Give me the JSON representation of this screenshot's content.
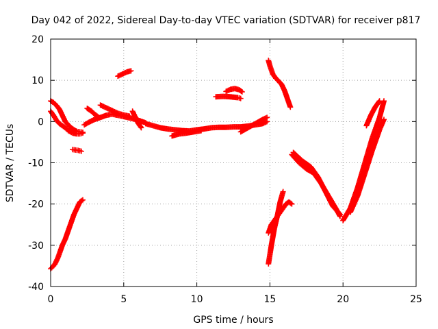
{
  "chart_data": {
    "type": "scatter",
    "title": "Day 042 of 2022, Sidereal Day-to-day VTEC variation (SDTVAR) for receiver p817",
    "xlabel": "GPS time / hours",
    "ylabel": "SDTVAR / TECUs",
    "xlim": [
      0,
      25
    ],
    "ylim": [
      -40,
      20
    ],
    "xticks": [
      0,
      5,
      10,
      15,
      20,
      25
    ],
    "yticks": [
      -40,
      -30,
      -20,
      -10,
      0,
      10,
      20
    ],
    "grid": true,
    "marker": "plus",
    "color": "#ff0000",
    "series": [
      {
        "x": [
          0.0,
          0.15,
          0.3,
          0.5,
          0.8,
          1.0,
          1.2,
          1.4,
          1.6,
          1.8,
          2.0,
          2.2
        ],
        "y": [
          -35.7,
          -35.2,
          -34.5,
          -33.0,
          -30.0,
          -28.5,
          -26.5,
          -24.5,
          -22.5,
          -21.0,
          -19.5,
          -19.0
        ]
      },
      {
        "x": [
          0.0,
          0.2,
          0.4,
          0.6,
          0.8,
          1.0,
          1.2,
          1.4,
          1.6,
          1.8,
          2.0,
          2.2
        ],
        "y": [
          5.0,
          4.6,
          3.9,
          3.0,
          1.5,
          0.0,
          -0.8,
          -1.5,
          -2.0,
          -2.4,
          -2.5,
          -2.6
        ]
      },
      {
        "x": [
          0.0,
          0.2,
          0.4,
          0.6,
          0.8,
          1.0,
          1.2,
          1.5,
          1.8,
          2.0,
          2.2
        ],
        "y": [
          2.5,
          1.5,
          0.3,
          -0.5,
          -1.0,
          -1.5,
          -2.2,
          -2.8,
          -3.0,
          -3.0,
          -2.8
        ]
      },
      {
        "x": [
          1.5,
          1.7,
          1.9,
          2.1
        ],
        "y": [
          -6.8,
          -6.9,
          -7.0,
          -7.2
        ]
      },
      {
        "x": [
          2.5,
          2.8,
          3.0,
          3.3
        ],
        "y": [
          3.2,
          2.5,
          1.8,
          1.0
        ]
      },
      {
        "x": [
          2.3,
          2.6,
          3.0,
          3.4,
          3.8,
          4.2,
          4.6,
          5.0,
          5.5,
          6.0,
          6.5
        ],
        "y": [
          -0.8,
          -0.2,
          0.5,
          1.0,
          1.5,
          1.8,
          1.5,
          1.2,
          0.8,
          0.3,
          -0.3
        ]
      },
      {
        "x": [
          3.4,
          3.7,
          4.0,
          4.3,
          4.6,
          5.0,
          5.4
        ],
        "y": [
          4.0,
          3.5,
          3.0,
          2.5,
          2.0,
          1.6,
          1.3
        ]
      },
      {
        "x": [
          4.6,
          4.9,
          5.2,
          5.5
        ],
        "y": [
          11.0,
          11.5,
          12.0,
          12.3
        ]
      },
      {
        "x": [
          5.6,
          5.8,
          6.0,
          6.2
        ],
        "y": [
          2.5,
          1.0,
          -0.5,
          -1.5
        ]
      },
      {
        "x": [
          6.5,
          7.0,
          7.5,
          8.0,
          8.5,
          9.0,
          9.5,
          10.0,
          10.5,
          11.0,
          11.5,
          12.0,
          12.5,
          13.0,
          13.5,
          14.0,
          14.5,
          14.8
        ],
        "y": [
          -0.5,
          -1.0,
          -1.5,
          -1.8,
          -2.0,
          -2.2,
          -2.3,
          -2.0,
          -1.8,
          -1.5,
          -1.4,
          -1.4,
          -1.3,
          -1.3,
          -1.1,
          -0.8,
          -0.5,
          0.0
        ]
      },
      {
        "x": [
          8.3,
          8.8,
          9.3,
          9.8,
          10.3
        ],
        "y": [
          -3.5,
          -3.0,
          -2.8,
          -2.5,
          -2.2
        ]
      },
      {
        "x": [
          13.0,
          13.5,
          14.0,
          14.5,
          14.8
        ],
        "y": [
          -2.5,
          -1.5,
          -0.5,
          0.5,
          1.0
        ]
      },
      {
        "x": [
          11.3,
          11.8,
          12.3,
          12.8,
          13.0
        ],
        "y": [
          6.0,
          6.1,
          6.0,
          5.8,
          5.6
        ]
      },
      {
        "x": [
          12.0,
          12.3,
          12.6,
          12.9,
          13.1
        ],
        "y": [
          7.3,
          7.8,
          8.0,
          7.7,
          7.2
        ]
      },
      {
        "x": [
          14.9,
          15.0,
          15.2,
          15.4,
          15.6,
          15.8,
          16.0,
          16.2,
          16.4
        ],
        "y": [
          14.8,
          13.5,
          11.5,
          10.5,
          9.8,
          9.0,
          7.5,
          5.5,
          3.5
        ]
      },
      {
        "x": [
          14.9,
          15.1,
          15.3,
          15.5,
          15.7,
          15.9
        ],
        "y": [
          -34.5,
          -30.0,
          -26.0,
          -23.0,
          -19.5,
          -17.0
        ]
      },
      {
        "x": [
          14.9,
          15.1,
          15.3,
          15.5,
          15.7,
          15.9,
          16.1,
          16.3,
          16.5
        ],
        "y": [
          -27.0,
          -25.0,
          -24.0,
          -23.0,
          -22.0,
          -21.0,
          -20.0,
          -19.5,
          -20.0
        ]
      },
      {
        "x": [
          16.5,
          17.0,
          17.5,
          18.0,
          18.5,
          19.0,
          19.5,
          19.8
        ],
        "y": [
          -8.0,
          -10.0,
          -11.5,
          -12.5,
          -15.0,
          -18.0,
          -21.0,
          -23.0
        ]
      },
      {
        "x": [
          16.6,
          17.2,
          17.8,
          18.3,
          18.8,
          19.3,
          19.8
        ],
        "y": [
          -7.5,
          -9.5,
          -11.0,
          -13.5,
          -17.0,
          -20.5,
          -22.5
        ]
      },
      {
        "x": [
          20.0,
          20.5,
          21.0,
          21.5,
          22.0,
          22.5,
          22.8
        ],
        "y": [
          -24.0,
          -21.0,
          -16.0,
          -10.0,
          -4.0,
          1.0,
          5.0
        ]
      },
      {
        "x": [
          20.5,
          21.0,
          21.5,
          22.0,
          22.5,
          22.8
        ],
        "y": [
          -22.0,
          -18.0,
          -12.5,
          -7.0,
          -2.0,
          0.5
        ]
      },
      {
        "x": [
          21.6,
          21.9,
          22.2,
          22.5
        ],
        "y": [
          -1.0,
          1.5,
          3.5,
          5.0
        ]
      }
    ]
  }
}
